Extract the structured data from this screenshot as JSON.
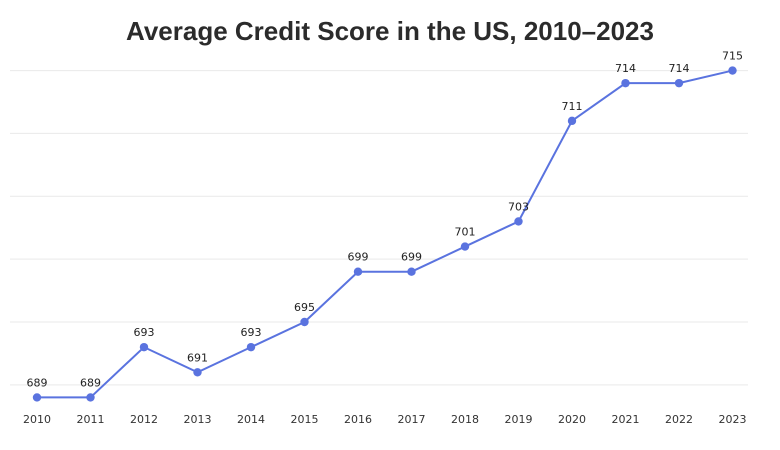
{
  "chart_data": {
    "type": "line",
    "title": "Average Credit Score in the US, 2010–2023",
    "xlabel": "",
    "ylabel": "",
    "categories": [
      "2010",
      "2011",
      "2012",
      "2013",
      "2014",
      "2015",
      "2016",
      "2017",
      "2018",
      "2019",
      "2020",
      "2021",
      "2022",
      "2023"
    ],
    "series": [
      {
        "values": [
          689,
          689,
          693,
          691,
          693,
          695,
          699,
          699,
          701,
          703,
          711,
          714,
          714,
          715
        ]
      }
    ],
    "ylim": [
      688,
      716
    ],
    "grid": true,
    "data_labels": true,
    "colors": {
      "line": "#5a73df",
      "grid": "#e9e9e9"
    }
  }
}
